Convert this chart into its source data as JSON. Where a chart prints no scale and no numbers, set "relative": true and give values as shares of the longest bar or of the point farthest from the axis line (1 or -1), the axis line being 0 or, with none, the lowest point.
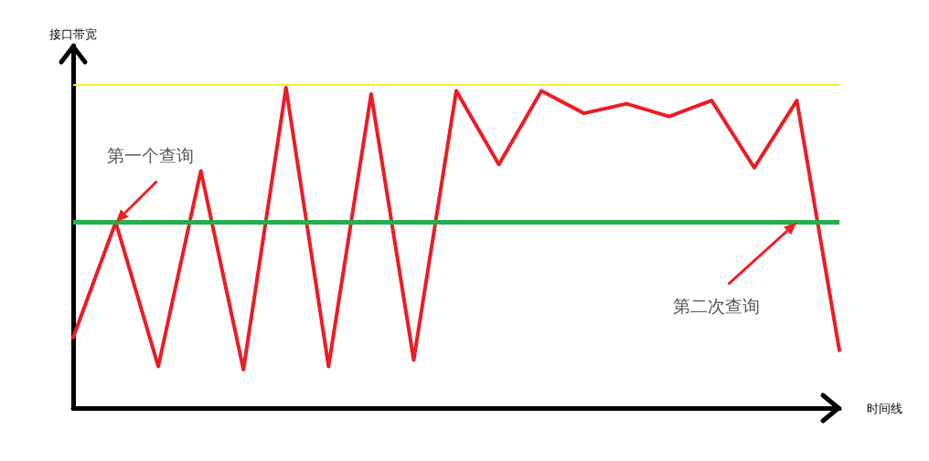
{
  "chart_data": {
    "type": "line",
    "relative": true,
    "xlabel": "时间线",
    "ylabel": "接口带宽",
    "categories": [
      null,
      null,
      null,
      null,
      null,
      null,
      null,
      null,
      null,
      null,
      null,
      null,
      null,
      null,
      null,
      null,
      null,
      null,
      null
    ],
    "series": [
      {
        "color": "#ed1c24",
        "values": [
          0.22,
          0.58,
          0.13,
          0.74,
          0.12,
          1.0,
          0.13,
          0.98,
          0.15,
          0.99,
          0.76,
          0.99,
          0.92,
          0.95,
          0.91,
          0.96,
          0.75,
          0.96,
          0.18
        ]
      }
    ],
    "ref_lines": [
      {
        "axis": "y",
        "value": 1.01,
        "color": "#ffe92e",
        "line_style": "solid"
      },
      {
        "axis": "y",
        "value": 0.58,
        "color": "#22b14c",
        "line_style": "solid"
      }
    ],
    "annotations": [
      "第一个查询",
      "第二次查询"
    ],
    "marker": "none",
    "line_style": "solid"
  }
}
